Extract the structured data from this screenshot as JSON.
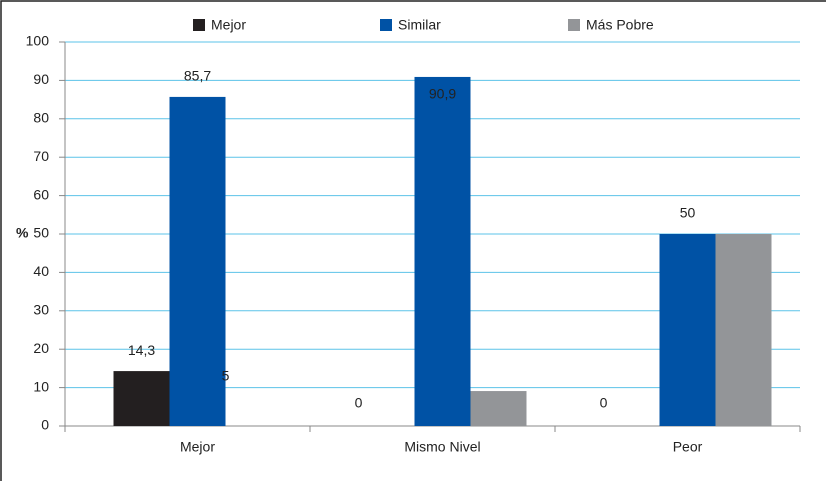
{
  "chart_data": {
    "type": "bar",
    "categories": [
      "Mejor",
      "Mismo Nivel",
      "Peor"
    ],
    "series": [
      {
        "name": "Mejor",
        "color": "#231f20",
        "values": [
          14.3,
          0,
          0
        ],
        "value_labels": [
          "14,3",
          "0",
          "0"
        ]
      },
      {
        "name": "Similar",
        "color": "#0052a5",
        "values": [
          85.7,
          90.9,
          50
        ],
        "value_labels": [
          "85,7",
          "90,9",
          "50"
        ]
      },
      {
        "name": "Más Pobre",
        "color": "#939598",
        "values": [
          0,
          9.1,
          50
        ],
        "value_labels": [
          null,
          null,
          null
        ]
      }
    ],
    "ylabel": "%",
    "annotations": [
      "5"
    ],
    "ylim": [
      0,
      100
    ],
    "yticks": [
      0,
      10,
      20,
      30,
      40,
      50,
      60,
      70,
      80,
      90,
      100
    ],
    "grid": true,
    "legend": "top"
  }
}
